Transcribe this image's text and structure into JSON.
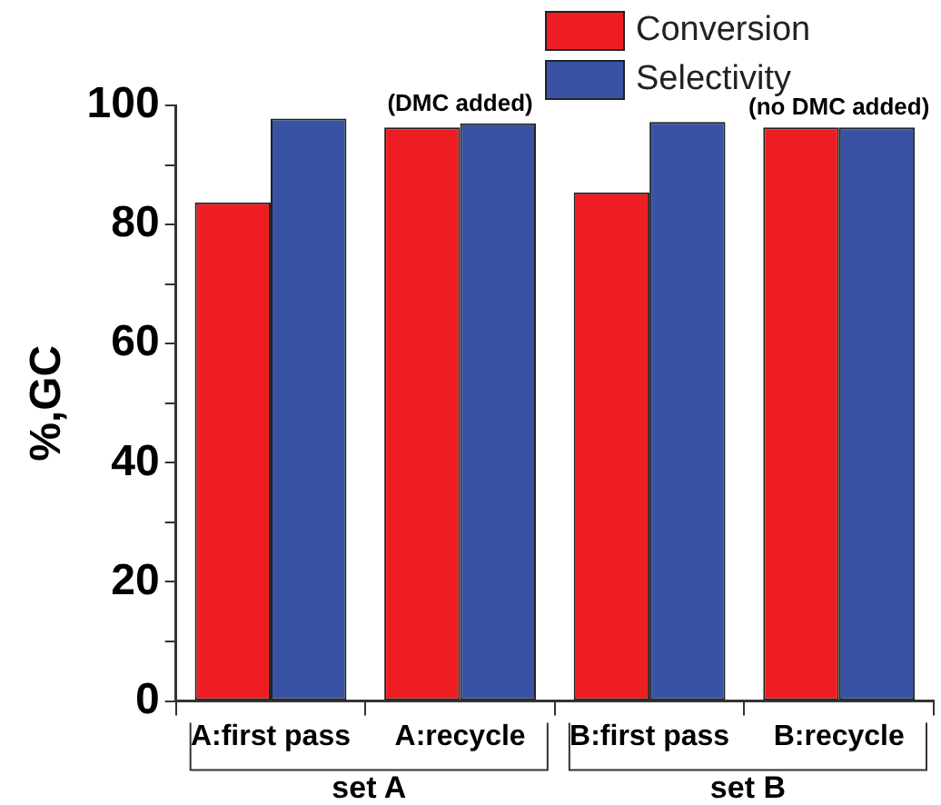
{
  "chart_data": {
    "type": "bar",
    "ylabel": "%,GC",
    "categories": [
      "A:first pass",
      "A:recycle",
      "B:first pass",
      "B:recycle"
    ],
    "series": [
      {
        "name": "Conversion",
        "color": "#ee1d23",
        "values": [
          83.7,
          96.3,
          85.4,
          96.3
        ]
      },
      {
        "name": "Selectivity",
        "color": "#3953a4",
        "values": [
          97.8,
          97,
          97.2,
          96.3
        ]
      }
    ],
    "ylim": [
      0,
      100
    ],
    "yticks": [
      0,
      {
        "value": 10,
        "label": null
      },
      20,
      {
        "value": 30,
        "label": null
      },
      40,
      {
        "value": 50,
        "label": null
      },
      60,
      {
        "value": 70,
        "label": null
      },
      80,
      {
        "value": 90,
        "label": null
      },
      100
    ],
    "grid": false,
    "legend": "top right",
    "annotations": [
      {
        "text": "(DMC added)",
        "x": "A:recycle",
        "y": 97
      },
      {
        "text": "(no DMC added)",
        "x": "B:recycle",
        "y": 96.3
      },
      "set A",
      "set B"
    ]
  }
}
